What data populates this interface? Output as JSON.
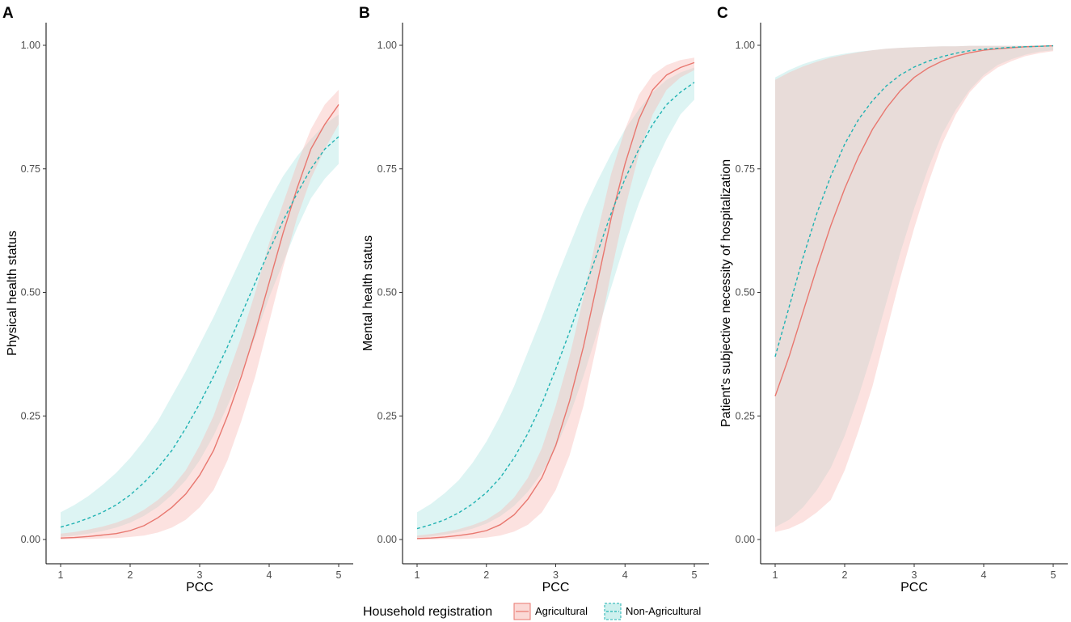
{
  "legend": {
    "title": "Household registration",
    "items": [
      {
        "label": "Agricultural",
        "color": "#e8776f",
        "fill": "#f8b9b5",
        "dash": "solid"
      },
      {
        "label": "Non-Agricultural",
        "color": "#1fb2b2",
        "fill": "#a6e3e0",
        "dash": "dashed"
      }
    ]
  },
  "chart_data": [
    {
      "type": "line",
      "panel": "A",
      "xlabel": "PCC",
      "ylabel": "Physical health status",
      "xlim": [
        1,
        5
      ],
      "ylim": [
        0,
        1
      ],
      "x_ticks": [
        "1",
        "2",
        "3",
        "4",
        "5"
      ],
      "y_ticks": [
        "0.00",
        "0.25",
        "0.50",
        "0.75",
        "1.00"
      ],
      "x": [
        1,
        1.2,
        1.4,
        1.6,
        1.8,
        2,
        2.2,
        2.4,
        2.6,
        2.8,
        3,
        3.2,
        3.4,
        3.6,
        3.8,
        4,
        4.2,
        4.4,
        4.6,
        4.8,
        5
      ],
      "series": [
        {
          "name": "Agricultural",
          "values": [
            0.003,
            0.004,
            0.006,
            0.009,
            0.012,
            0.018,
            0.028,
            0.044,
            0.065,
            0.092,
            0.13,
            0.18,
            0.25,
            0.33,
            0.42,
            0.52,
            0.62,
            0.71,
            0.79,
            0.84,
            0.88
          ],
          "lower": [
            0.0,
            0.001,
            0.001,
            0.002,
            0.003,
            0.005,
            0.008,
            0.014,
            0.024,
            0.04,
            0.065,
            0.1,
            0.16,
            0.24,
            0.33,
            0.44,
            0.55,
            0.65,
            0.73,
            0.79,
            0.84
          ],
          "upper": [
            0.012,
            0.015,
            0.02,
            0.026,
            0.034,
            0.045,
            0.06,
            0.08,
            0.105,
            0.14,
            0.19,
            0.25,
            0.33,
            0.41,
            0.5,
            0.6,
            0.68,
            0.76,
            0.83,
            0.88,
            0.91
          ]
        },
        {
          "name": "Non-Agricultural",
          "values": [
            0.025,
            0.033,
            0.043,
            0.055,
            0.07,
            0.09,
            0.115,
            0.145,
            0.18,
            0.225,
            0.275,
            0.33,
            0.39,
            0.455,
            0.52,
            0.585,
            0.645,
            0.7,
            0.75,
            0.79,
            0.815
          ],
          "lower": [
            0.005,
            0.008,
            0.012,
            0.017,
            0.024,
            0.034,
            0.048,
            0.066,
            0.09,
            0.12,
            0.16,
            0.21,
            0.27,
            0.335,
            0.41,
            0.49,
            0.56,
            0.63,
            0.69,
            0.73,
            0.76
          ],
          "upper": [
            0.055,
            0.07,
            0.088,
            0.11,
            0.135,
            0.165,
            0.2,
            0.24,
            0.29,
            0.34,
            0.395,
            0.45,
            0.51,
            0.57,
            0.63,
            0.685,
            0.735,
            0.775,
            0.81,
            0.84,
            0.86
          ]
        }
      ]
    },
    {
      "type": "line",
      "panel": "B",
      "xlabel": "PCC",
      "ylabel": "Mental health status",
      "xlim": [
        1,
        5
      ],
      "ylim": [
        0,
        1
      ],
      "x_ticks": [
        "1",
        "2",
        "3",
        "4",
        "5"
      ],
      "y_ticks": [
        "0.00",
        "0.25",
        "0.50",
        "0.75",
        "1.00"
      ],
      "x": [
        1,
        1.2,
        1.4,
        1.6,
        1.8,
        2,
        2.2,
        2.4,
        2.6,
        2.8,
        3,
        3.2,
        3.4,
        3.6,
        3.8,
        4,
        4.2,
        4.4,
        4.6,
        4.8,
        5
      ],
      "series": [
        {
          "name": "Agricultural",
          "values": [
            0.002,
            0.003,
            0.005,
            0.008,
            0.012,
            0.018,
            0.03,
            0.05,
            0.082,
            0.125,
            0.19,
            0.28,
            0.39,
            0.52,
            0.65,
            0.76,
            0.85,
            0.91,
            0.94,
            0.955,
            0.965
          ],
          "lower": [
            0.0,
            0.0,
            0.001,
            0.001,
            0.002,
            0.004,
            0.008,
            0.016,
            0.03,
            0.055,
            0.1,
            0.17,
            0.27,
            0.4,
            0.54,
            0.67,
            0.78,
            0.86,
            0.91,
            0.935,
            0.95
          ],
          "upper": [
            0.008,
            0.011,
            0.015,
            0.021,
            0.029,
            0.04,
            0.058,
            0.085,
            0.125,
            0.185,
            0.27,
            0.37,
            0.49,
            0.62,
            0.74,
            0.83,
            0.9,
            0.94,
            0.96,
            0.97,
            0.975
          ]
        },
        {
          "name": "Non-Agricultural",
          "values": [
            0.022,
            0.03,
            0.04,
            0.054,
            0.072,
            0.095,
            0.125,
            0.165,
            0.215,
            0.275,
            0.345,
            0.42,
            0.5,
            0.58,
            0.66,
            0.73,
            0.79,
            0.84,
            0.88,
            0.905,
            0.925
          ],
          "lower": [
            0.004,
            0.006,
            0.01,
            0.015,
            0.022,
            0.032,
            0.047,
            0.068,
            0.097,
            0.135,
            0.185,
            0.25,
            0.33,
            0.42,
            0.51,
            0.6,
            0.68,
            0.75,
            0.81,
            0.86,
            0.89
          ],
          "upper": [
            0.055,
            0.072,
            0.094,
            0.12,
            0.155,
            0.198,
            0.25,
            0.31,
            0.38,
            0.45,
            0.525,
            0.595,
            0.665,
            0.725,
            0.78,
            0.83,
            0.87,
            0.905,
            0.93,
            0.945,
            0.955
          ]
        }
      ]
    },
    {
      "type": "line",
      "panel": "C",
      "xlabel": "PCC",
      "ylabel": "Patient's subjective necessity of hospitalization",
      "xlim": [
        1,
        5
      ],
      "ylim": [
        0,
        1
      ],
      "x_ticks": [
        "1",
        "2",
        "3",
        "4",
        "5"
      ],
      "y_ticks": [
        "0.00",
        "0.25",
        "0.50",
        "0.75",
        "1.00"
      ],
      "x": [
        1,
        1.2,
        1.4,
        1.6,
        1.8,
        2,
        2.2,
        2.4,
        2.6,
        2.8,
        3,
        3.2,
        3.4,
        3.6,
        3.8,
        4,
        4.2,
        4.4,
        4.6,
        4.8,
        5
      ],
      "series": [
        {
          "name": "Agricultural",
          "values": [
            0.29,
            0.37,
            0.46,
            0.55,
            0.635,
            0.71,
            0.775,
            0.83,
            0.873,
            0.908,
            0.935,
            0.954,
            0.968,
            0.978,
            0.985,
            0.99,
            0.993,
            0.995,
            0.997,
            0.998,
            0.999
          ],
          "lower": [
            0.015,
            0.022,
            0.035,
            0.055,
            0.08,
            0.14,
            0.22,
            0.31,
            0.42,
            0.53,
            0.63,
            0.72,
            0.8,
            0.86,
            0.905,
            0.935,
            0.955,
            0.968,
            0.978,
            0.984,
            0.988
          ],
          "upper": [
            0.93,
            0.945,
            0.957,
            0.967,
            0.975,
            0.981,
            0.986,
            0.99,
            0.993,
            0.995,
            0.996,
            0.997,
            0.998,
            0.998,
            0.999,
            0.999,
            0.999,
            0.999,
            0.999,
            0.999,
            0.999
          ]
        },
        {
          "name": "Non-Agricultural",
          "values": [
            0.37,
            0.47,
            0.57,
            0.66,
            0.735,
            0.8,
            0.85,
            0.888,
            0.918,
            0.94,
            0.956,
            0.968,
            0.977,
            0.984,
            0.989,
            0.992,
            0.994,
            0.996,
            0.997,
            0.998,
            0.999
          ],
          "lower": [
            0.025,
            0.04,
            0.065,
            0.1,
            0.145,
            0.21,
            0.29,
            0.38,
            0.48,
            0.58,
            0.67,
            0.75,
            0.82,
            0.87,
            0.91,
            0.94,
            0.96,
            0.972,
            0.981,
            0.987,
            0.99
          ],
          "upper": [
            0.935,
            0.95,
            0.962,
            0.971,
            0.978,
            0.983,
            0.987,
            0.99,
            0.993,
            0.995,
            0.996,
            0.997,
            0.998,
            0.998,
            0.999,
            0.999,
            0.999,
            0.999,
            0.999,
            0.999,
            0.999
          ]
        }
      ]
    }
  ]
}
